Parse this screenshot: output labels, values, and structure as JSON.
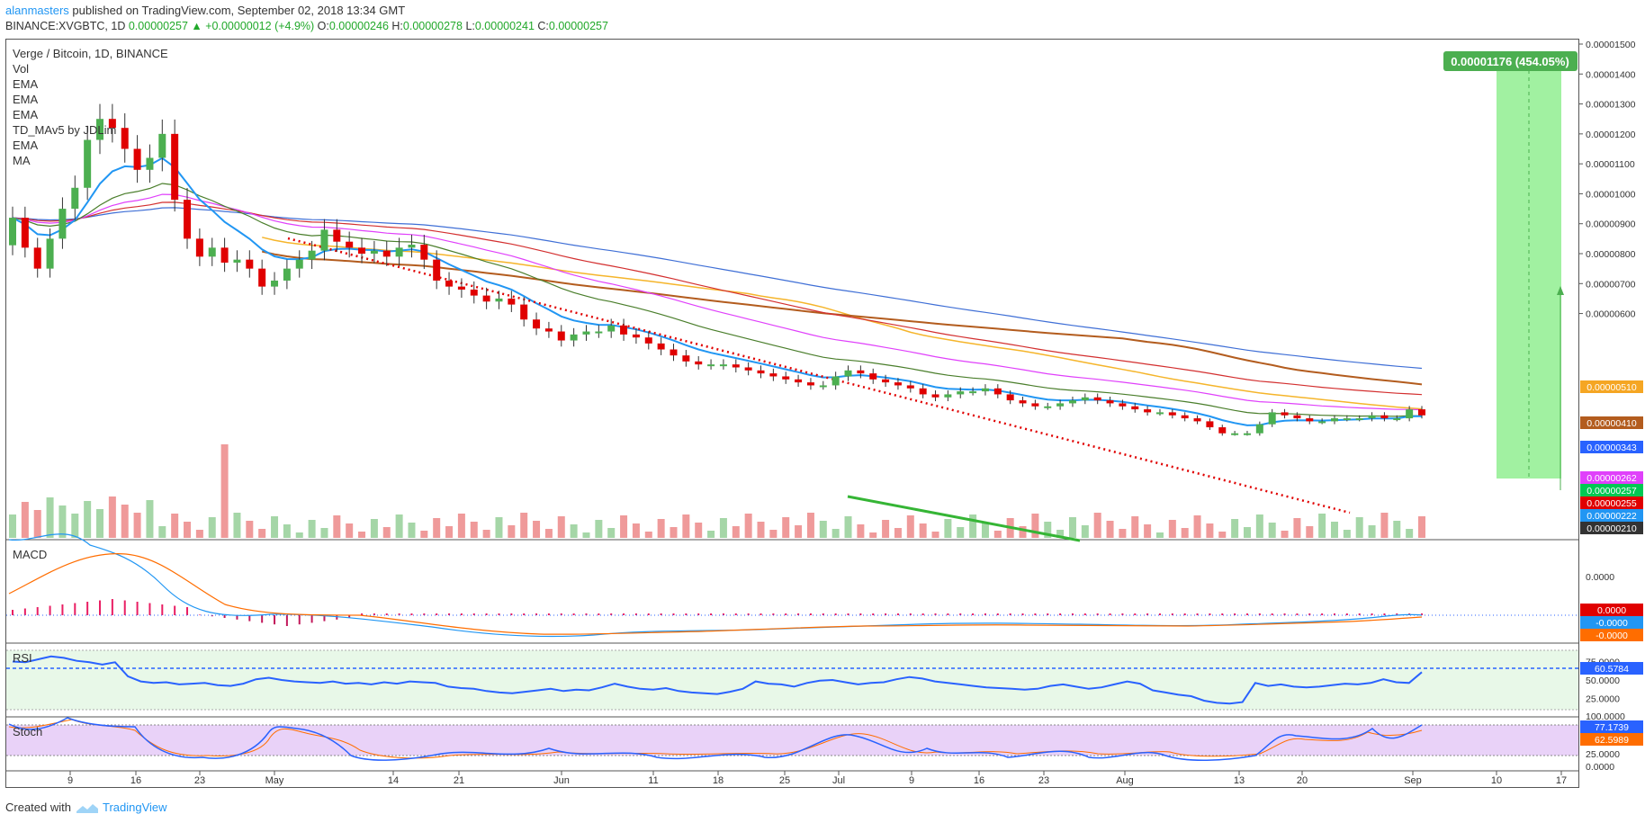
{
  "header": {
    "author": "alanmasters",
    "published_text": " published on TradingView.com, September 02, 2018 13:34 GMT"
  },
  "ticker": {
    "symbol": "BINANCE:XVGBTC, 1D",
    "last": "0.00000257",
    "change": "+0.00000012 (+4.9%)",
    "o_label": "O:",
    "o": "0.00000246",
    "h_label": "H:",
    "h": "0.00000278",
    "l_label": "L:",
    "l": "0.00000241",
    "c_label": "C:",
    "c": "0.00000257"
  },
  "legend": {
    "title": "Verge / Bitcoin, 1D, BINANCE",
    "items": [
      "Vol",
      "EMA",
      "EMA",
      "EMA",
      "TD_MAv5 by JDLim",
      "EMA",
      "MA"
    ]
  },
  "panes": {
    "macd": "MACD",
    "rsi": "RSI",
    "stoch": "Stoch"
  },
  "footer": {
    "created": "Created with",
    "brand": "TradingView"
  },
  "colors": {
    "up": "#4caf50",
    "down": "#e00000",
    "ema1": "#2196f3",
    "ema2": "#e23b3b",
    "ema3": "#4a7e2b",
    "ema4": "#e040fb",
    "ema5": "#3f6fd6",
    "ma": "#f5a623",
    "ma2": "#b35c1e"
  },
  "chart_data": [
    {
      "type": "line",
      "title": "Verge / Bitcoin, 1D, BINANCE",
      "x_ticks": [
        "9",
        "16",
        "23",
        "May",
        "14",
        "21",
        "Jun",
        "11",
        "18",
        "25",
        "Jul",
        "9",
        "16",
        "23",
        "Aug",
        "13",
        "20",
        "Sep",
        "10",
        "17"
      ],
      "y_ticks": [
        "0.00001500",
        "0.00001400",
        "0.00001300",
        "0.00001200",
        "0.00001100",
        "0.00001000",
        "0.00000900",
        "0.00000800",
        "0.00000700",
        "0.00000600"
      ],
      "ylim": [
        1e-06,
        1.5e-05
      ],
      "price_labels": [
        {
          "value": "0.00000510",
          "color": "#f5a623"
        },
        {
          "value": "0.00000410",
          "color": "#b35c1e"
        },
        {
          "value": "0.00000343",
          "color": "#2962ff"
        },
        {
          "value": "0.00000262",
          "color": "#e040fb"
        },
        {
          "value": "0.00000257",
          "color": "#00c853"
        },
        {
          "value": "0.00000255",
          "color": "#e00000"
        },
        {
          "value": "0.00000222",
          "color": "#2196f3"
        },
        {
          "value": "0.00000210",
          "color": "#333333"
        }
      ],
      "target_box": {
        "label": "0.00001176 (454.05%)",
        "low": 2.62e-06,
        "high": 1.438e-05
      },
      "close": [
        9.2e-06,
        8.2e-06,
        7.5e-06,
        8.5e-06,
        9.5e-06,
        1.02e-05,
        1.18e-05,
        1.25e-05,
        1.22e-05,
        1.15e-05,
        1.08e-05,
        1.12e-05,
        1.2e-05,
        9.8e-06,
        8.5e-06,
        7.9e-06,
        8.2e-06,
        7.7e-06,
        7.8e-06,
        7.5e-06,
        6.9e-06,
        7.1e-06,
        7.5e-06,
        7.8e-06,
        8.1e-06,
        8.8e-06,
        8.4e-06,
        8.2e-06,
        8e-06,
        8.1e-06,
        7.9e-06,
        8.2e-06,
        8.3e-06,
        7.8e-06,
        7.1e-06,
        6.9e-06,
        6.8e-06,
        6.6e-06,
        6.4e-06,
        6.5e-06,
        6.3e-06,
        5.8e-06,
        5.5e-06,
        5.4e-06,
        5.1e-06,
        5.3e-06,
        5.4e-06,
        5.4e-06,
        5.6e-06,
        5.3e-06,
        5.2e-06,
        5e-06,
        4.8e-06,
        4.6e-06,
        4.4e-06,
        4.3e-06,
        4.3e-06,
        4.3e-06,
        4.2e-06,
        4.1e-06,
        4e-06,
        3.9e-06,
        3.8e-06,
        3.7e-06,
        3.6e-06,
        3.6e-06,
        3.9e-06,
        4.1e-06,
        4e-06,
        3.8e-06,
        3.7e-06,
        3.6e-06,
        3.5e-06,
        3.3e-06,
        3.2e-06,
        3.3e-06,
        3.4e-06,
        3.4e-06,
        3.5e-06,
        3.3e-06,
        3.1e-06,
        3e-06,
        2.9e-06,
        2.9e-06,
        3e-06,
        3.1e-06,
        3.2e-06,
        3.1e-06,
        3e-06,
        2.9e-06,
        2.8e-06,
        2.7e-06,
        2.7e-06,
        2.6e-06,
        2.5e-06,
        2.4e-06,
        2.2e-06,
        2e-06,
        2e-06,
        2e-06,
        2.3e-06,
        2.7e-06,
        2.6e-06,
        2.5e-06,
        2.4e-06,
        2.4e-06,
        2.5e-06,
        2.5e-06,
        2.5e-06,
        2.6e-06,
        2.5e-06,
        2.5e-06,
        2.8e-06,
        2.6e-06
      ]
    },
    {
      "type": "line",
      "title": "MACD",
      "y_ticks": [
        "0.0000"
      ],
      "value_labels": [
        {
          "value": "0.0000",
          "color": "#e00000"
        },
        {
          "value": "-0.0000",
          "color": "#2196f3"
        },
        {
          "value": "-0.0000",
          "color": "#ff6d00"
        }
      ]
    },
    {
      "type": "line",
      "title": "RSI",
      "y_ticks": [
        "75.0000",
        "50.0000",
        "25.0000"
      ],
      "ylim": [
        0,
        100
      ],
      "value_labels": [
        {
          "value": "60.5784",
          "color": "#2962ff"
        }
      ],
      "values": [
        75,
        74,
        78,
        82,
        80,
        76,
        74,
        71,
        74,
        55,
        48,
        46,
        47,
        44,
        45,
        46,
        43,
        42,
        45,
        51,
        53,
        50,
        48,
        47,
        46,
        48,
        45,
        46,
        44,
        47,
        45,
        48,
        47,
        46,
        41,
        39,
        38,
        35,
        33,
        32,
        34,
        36,
        38,
        35,
        37,
        36,
        40,
        45,
        41,
        38,
        37,
        39,
        35,
        33,
        32,
        31,
        34,
        38,
        48,
        45,
        44,
        41,
        46,
        49,
        50,
        47,
        44,
        46,
        47,
        51,
        54,
        52,
        48,
        46,
        44,
        42,
        40,
        39,
        38,
        37,
        38,
        42,
        44,
        41,
        38,
        40,
        44,
        48,
        45,
        36,
        33,
        30,
        28,
        22,
        19,
        18,
        20,
        46,
        42,
        44,
        41,
        40,
        41,
        43,
        45,
        44,
        46,
        51,
        47,
        46,
        60.58
      ]
    },
    {
      "type": "line",
      "title": "Stoch",
      "y_ticks": [
        "100.0000",
        "25.0000",
        "0.0000"
      ],
      "ylim": [
        0,
        100
      ],
      "value_labels": [
        {
          "value": "77.1739",
          "color": "#2962ff"
        },
        {
          "value": "62.5989",
          "color": "#ff6d00"
        }
      ]
    }
  ]
}
